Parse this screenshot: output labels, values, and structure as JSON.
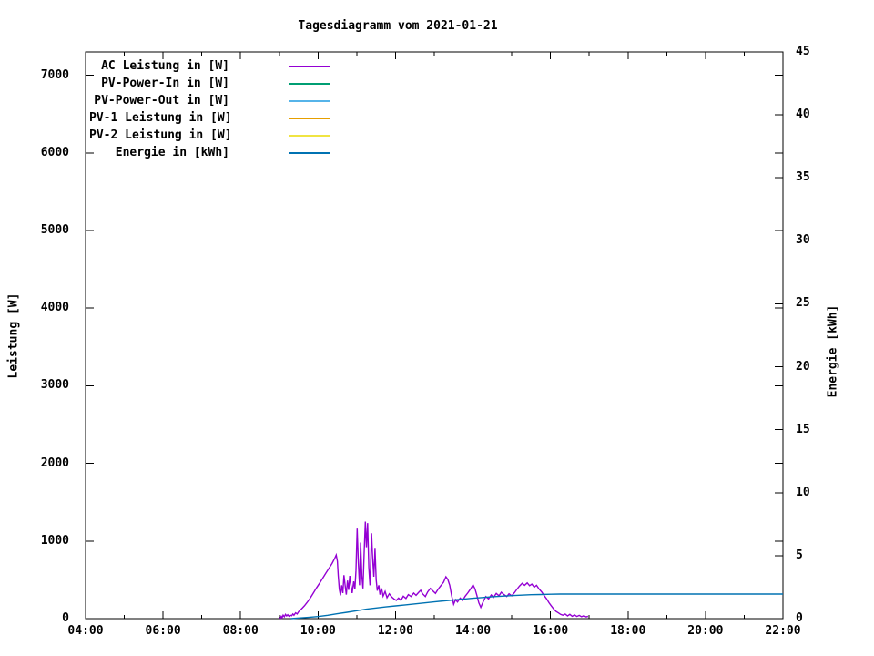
{
  "chart_data": {
    "type": "line",
    "title": "Tagesdiagramm vom 2021-01-21",
    "legend_position": "top-left-inside",
    "grid": false,
    "x_axis": {
      "min": 4,
      "max": 22,
      "major_tick_hours": [
        4,
        6,
        8,
        10,
        12,
        14,
        16,
        18,
        20,
        22
      ],
      "minor_tick_hours": [
        5,
        7,
        9,
        11,
        13,
        15,
        17,
        19,
        21
      ],
      "tick_labels": [
        "04:00",
        "06:00",
        "08:00",
        "10:00",
        "12:00",
        "14:00",
        "16:00",
        "18:00",
        "20:00",
        "22:00"
      ]
    },
    "y_left": {
      "label": "Leistung [W]",
      "min": 0,
      "max": 7300,
      "tick_values": [
        0,
        1000,
        2000,
        3000,
        4000,
        5000,
        6000,
        7000
      ],
      "tick_labels": [
        "0",
        "1000",
        "2000",
        "3000",
        "4000",
        "5000",
        "6000",
        "7000"
      ]
    },
    "y_right": {
      "label": "Energie [kWh]",
      "min": 0,
      "max": 45,
      "tick_values": [
        0,
        5,
        10,
        15,
        20,
        25,
        30,
        35,
        40,
        45
      ],
      "tick_labels": [
        "0",
        "5",
        "10",
        "15",
        "20",
        "25",
        "30",
        "35",
        "40",
        "45"
      ]
    },
    "series": [
      {
        "name": "AC Leistung in [W]",
        "color": "#9400d3",
        "axis": "left",
        "points": [
          [
            9.02,
            0
          ],
          [
            9.05,
            30
          ],
          [
            9.07,
            10
          ],
          [
            9.1,
            45
          ],
          [
            9.13,
            25
          ],
          [
            9.16,
            55
          ],
          [
            9.19,
            35
          ],
          [
            9.22,
            50
          ],
          [
            9.25,
            30
          ],
          [
            9.28,
            45
          ],
          [
            9.32,
            38
          ],
          [
            9.35,
            60
          ],
          [
            9.38,
            45
          ],
          [
            9.42,
            75
          ],
          [
            9.46,
            60
          ],
          [
            9.5,
            90
          ],
          [
            9.55,
            115
          ],
          [
            9.6,
            140
          ],
          [
            9.65,
            165
          ],
          [
            9.72,
            210
          ],
          [
            9.8,
            265
          ],
          [
            9.88,
            330
          ],
          [
            9.96,
            395
          ],
          [
            10.04,
            455
          ],
          [
            10.12,
            520
          ],
          [
            10.2,
            585
          ],
          [
            10.28,
            645
          ],
          [
            10.36,
            710
          ],
          [
            10.43,
            775
          ],
          [
            10.47,
            820
          ],
          [
            10.5,
            740
          ],
          [
            10.52,
            560
          ],
          [
            10.55,
            380
          ],
          [
            10.58,
            300
          ],
          [
            10.61,
            430
          ],
          [
            10.64,
            330
          ],
          [
            10.67,
            560
          ],
          [
            10.7,
            430
          ],
          [
            10.73,
            310
          ],
          [
            10.76,
            490
          ],
          [
            10.79,
            370
          ],
          [
            10.82,
            550
          ],
          [
            10.85,
            430
          ],
          [
            10.88,
            330
          ],
          [
            10.92,
            480
          ],
          [
            10.95,
            380
          ],
          [
            10.98,
            620
          ],
          [
            11.01,
            1160
          ],
          [
            11.04,
            720
          ],
          [
            11.07,
            430
          ],
          [
            11.1,
            980
          ],
          [
            11.13,
            560
          ],
          [
            11.16,
            390
          ],
          [
            11.19,
            850
          ],
          [
            11.22,
            1250
          ],
          [
            11.25,
            920
          ],
          [
            11.28,
            1230
          ],
          [
            11.31,
            660
          ],
          [
            11.34,
            430
          ],
          [
            11.38,
            1100
          ],
          [
            11.41,
            780
          ],
          [
            11.44,
            540
          ],
          [
            11.47,
            900
          ],
          [
            11.5,
            500
          ],
          [
            11.53,
            360
          ],
          [
            11.57,
            430
          ],
          [
            11.6,
            310
          ],
          [
            11.64,
            390
          ],
          [
            11.68,
            290
          ],
          [
            11.73,
            350
          ],
          [
            11.78,
            270
          ],
          [
            11.84,
            320
          ],
          [
            11.9,
            280
          ],
          [
            11.96,
            255
          ],
          [
            12.02,
            235
          ],
          [
            12.08,
            265
          ],
          [
            12.14,
            235
          ],
          [
            12.2,
            290
          ],
          [
            12.27,
            260
          ],
          [
            12.33,
            310
          ],
          [
            12.4,
            285
          ],
          [
            12.47,
            330
          ],
          [
            12.53,
            300
          ],
          [
            12.6,
            340
          ],
          [
            12.65,
            365
          ],
          [
            12.7,
            320
          ],
          [
            12.77,
            285
          ],
          [
            12.83,
            345
          ],
          [
            12.9,
            390
          ],
          [
            12.97,
            355
          ],
          [
            13.03,
            325
          ],
          [
            13.1,
            380
          ],
          [
            13.17,
            425
          ],
          [
            13.24,
            470
          ],
          [
            13.3,
            540
          ],
          [
            13.35,
            505
          ],
          [
            13.4,
            430
          ],
          [
            13.45,
            295
          ],
          [
            13.5,
            185
          ],
          [
            13.55,
            245
          ],
          [
            13.6,
            215
          ],
          [
            13.67,
            265
          ],
          [
            13.73,
            235
          ],
          [
            13.8,
            290
          ],
          [
            13.87,
            335
          ],
          [
            13.94,
            385
          ],
          [
            14.0,
            435
          ],
          [
            14.05,
            385
          ],
          [
            14.1,
            300
          ],
          [
            14.15,
            205
          ],
          [
            14.2,
            145
          ],
          [
            14.27,
            225
          ],
          [
            14.33,
            285
          ],
          [
            14.4,
            255
          ],
          [
            14.47,
            305
          ],
          [
            14.53,
            275
          ],
          [
            14.6,
            325
          ],
          [
            14.67,
            295
          ],
          [
            14.73,
            340
          ],
          [
            14.8,
            310
          ],
          [
            14.87,
            285
          ],
          [
            14.93,
            320
          ],
          [
            15.0,
            295
          ],
          [
            15.07,
            335
          ],
          [
            15.13,
            375
          ],
          [
            15.2,
            420
          ],
          [
            15.27,
            455
          ],
          [
            15.33,
            430
          ],
          [
            15.4,
            460
          ],
          [
            15.46,
            425
          ],
          [
            15.52,
            445
          ],
          [
            15.58,
            405
          ],
          [
            15.64,
            430
          ],
          [
            15.7,
            385
          ],
          [
            15.77,
            345
          ],
          [
            15.84,
            295
          ],
          [
            15.9,
            255
          ],
          [
            15.96,
            205
          ],
          [
            16.02,
            165
          ],
          [
            16.08,
            125
          ],
          [
            16.14,
            95
          ],
          [
            16.2,
            75
          ],
          [
            16.26,
            55
          ],
          [
            16.32,
            45
          ],
          [
            16.38,
            60
          ],
          [
            16.44,
            35
          ],
          [
            16.5,
            55
          ],
          [
            16.56,
            30
          ],
          [
            16.62,
            48
          ],
          [
            16.68,
            28
          ],
          [
            16.74,
            42
          ],
          [
            16.8,
            25
          ],
          [
            16.86,
            38
          ],
          [
            16.92,
            22
          ],
          [
            16.97,
            30
          ]
        ]
      },
      {
        "name": "PV-Power-In in [W]",
        "color": "#009e73",
        "axis": "left",
        "points": []
      },
      {
        "name": "PV-Power-Out in [W]",
        "color": "#56b4e9",
        "axis": "left",
        "points": []
      },
      {
        "name": "PV-1 Leistung in [W]",
        "color": "#e69f00",
        "axis": "left",
        "points": []
      },
      {
        "name": "PV-2 Leistung in [W]",
        "color": "#f0e442",
        "axis": "left",
        "points": []
      },
      {
        "name": "Energie in [kWh]",
        "color": "#0072b2",
        "axis": "right",
        "points": [
          [
            9.3,
            0
          ],
          [
            9.5,
            0.05
          ],
          [
            9.75,
            0.1
          ],
          [
            10.0,
            0.17
          ],
          [
            10.25,
            0.27
          ],
          [
            10.5,
            0.39
          ],
          [
            10.75,
            0.51
          ],
          [
            11.0,
            0.63
          ],
          [
            11.25,
            0.75
          ],
          [
            11.5,
            0.85
          ],
          [
            11.75,
            0.93
          ],
          [
            12.0,
            1.01
          ],
          [
            12.25,
            1.09
          ],
          [
            12.5,
            1.17
          ],
          [
            12.75,
            1.25
          ],
          [
            13.0,
            1.33
          ],
          [
            13.25,
            1.41
          ],
          [
            13.5,
            1.48
          ],
          [
            13.75,
            1.55
          ],
          [
            14.0,
            1.62
          ],
          [
            14.25,
            1.68
          ],
          [
            14.5,
            1.74
          ],
          [
            14.75,
            1.79
          ],
          [
            15.0,
            1.83
          ],
          [
            15.25,
            1.87
          ],
          [
            15.5,
            1.9
          ],
          [
            15.75,
            1.92
          ],
          [
            16.0,
            1.94
          ],
          [
            16.25,
            1.95
          ],
          [
            16.5,
            1.95
          ],
          [
            17.0,
            1.95
          ],
          [
            22.0,
            1.95
          ]
        ]
      }
    ]
  },
  "colors": {
    "foreground": "#000000",
    "background": "#ffffff"
  }
}
